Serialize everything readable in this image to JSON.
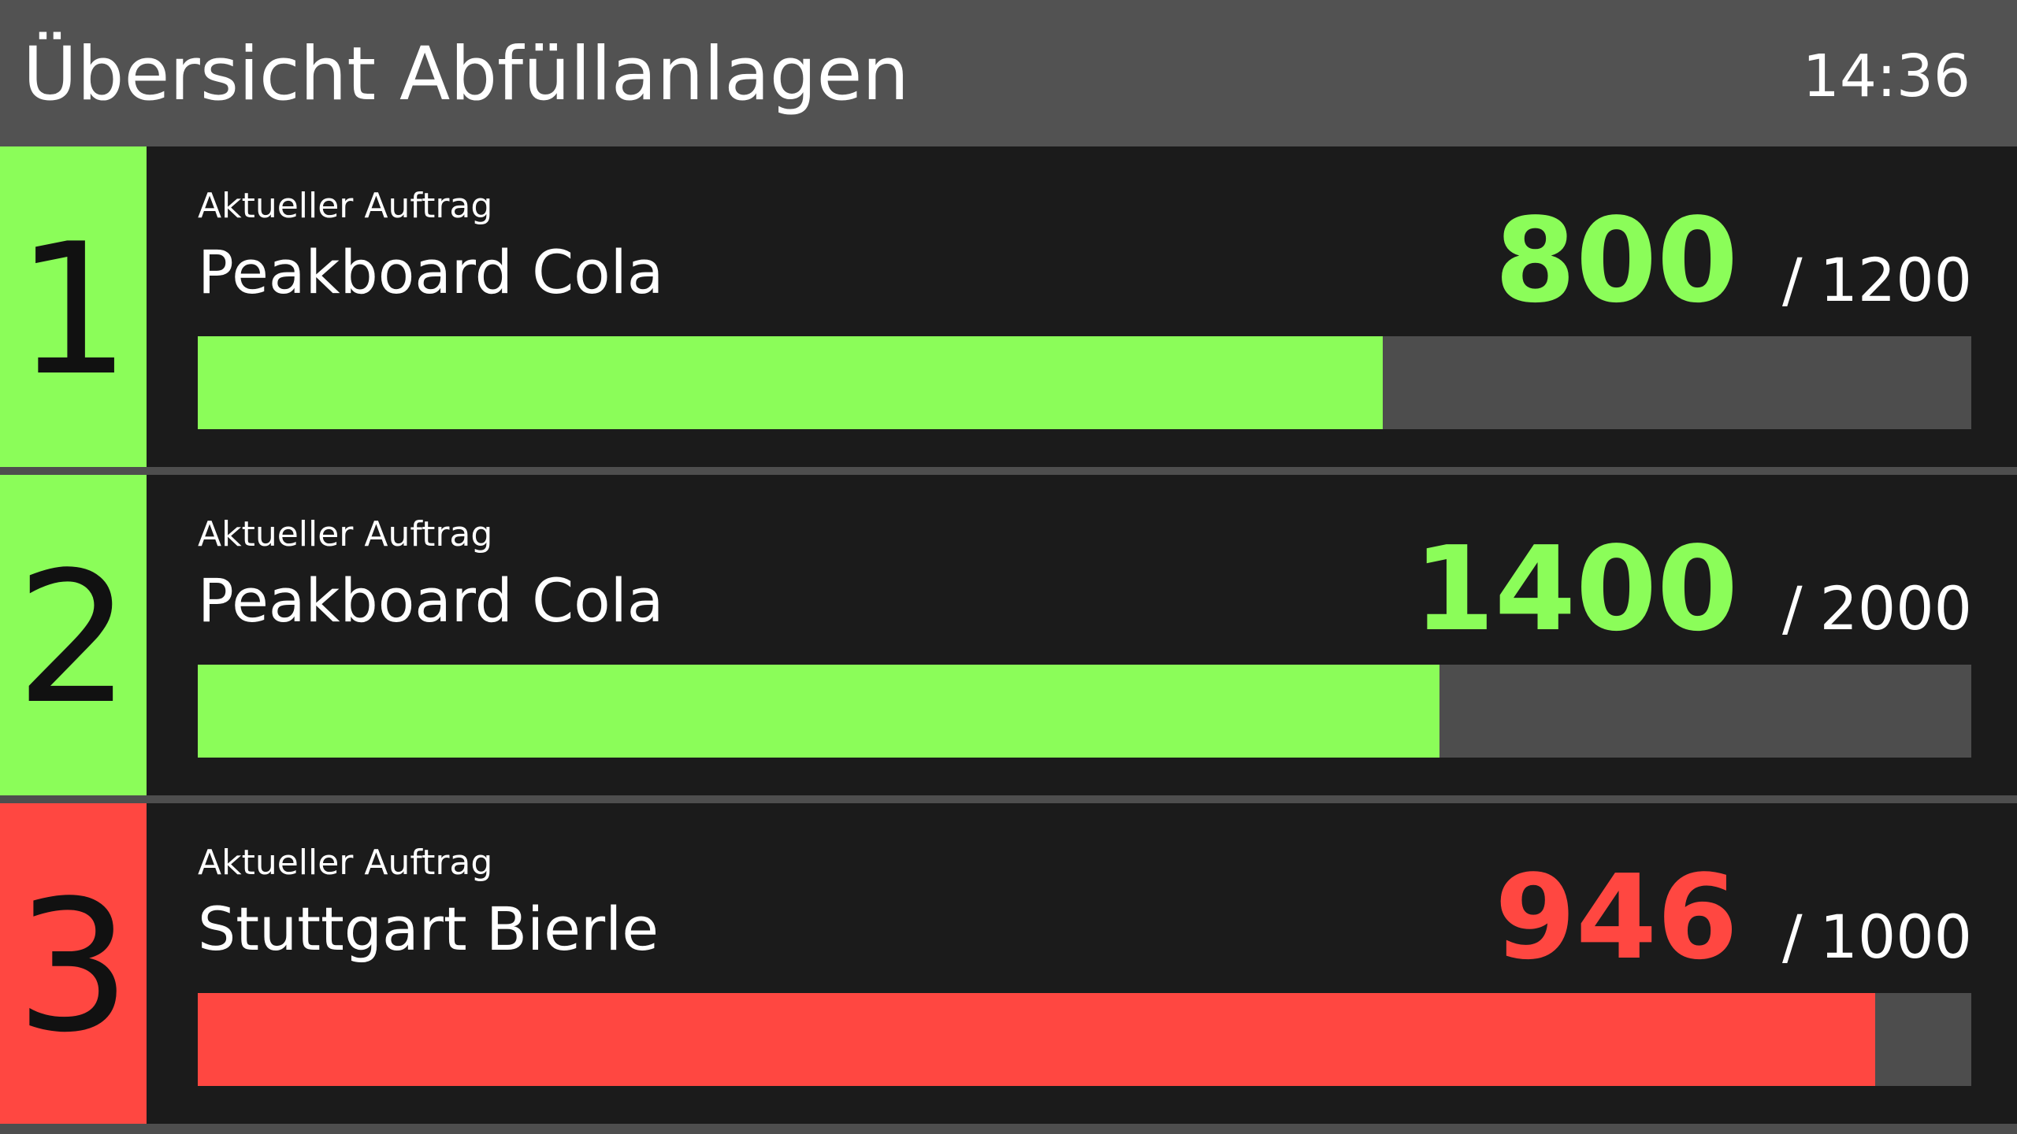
{
  "header": {
    "title": "Übersicht Abfüllanlagen",
    "clock": "14:36"
  },
  "colors": {
    "ok": "#8bfd59",
    "alert": "#ff4741"
  },
  "lines": [
    {
      "number": "1",
      "order_label": "Aktueller Auftrag",
      "product": "Peakboard Cola",
      "current": "800",
      "slash": "/",
      "target": "1200",
      "progress": 0.668,
      "status": "ok"
    },
    {
      "number": "2",
      "order_label": "Aktueller Auftrag",
      "product": "Peakboard Cola",
      "current": "1400",
      "slash": "/",
      "target": "2000",
      "progress": 0.7,
      "status": "ok"
    },
    {
      "number": "3",
      "order_label": "Aktueller Auftrag",
      "product": "Stuttgart Bierle",
      "current": "946",
      "slash": "/",
      "target": "1000",
      "progress": 0.946,
      "status": "alert"
    }
  ]
}
